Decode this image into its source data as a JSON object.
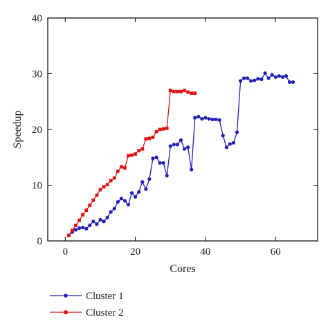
{
  "chart_data": {
    "type": "line",
    "xlabel": "Cores",
    "ylabel": "Speedup",
    "xlim": [
      -5,
      72
    ],
    "ylim": [
      0,
      40
    ],
    "xticks": [
      0,
      20,
      40,
      60
    ],
    "yticks": [
      0,
      10,
      20,
      30,
      40
    ],
    "grid": false,
    "legend_position": "bottom-left, below plot",
    "series": [
      {
        "name": "Cluster 1",
        "color": "#1f1fb4",
        "marker": "circle",
        "x": [
          1,
          2,
          3,
          4,
          5,
          6,
          7,
          8,
          9,
          10,
          11,
          12,
          13,
          14,
          15,
          16,
          17,
          18,
          19,
          20,
          21,
          22,
          23,
          24,
          25,
          26,
          27,
          28,
          29,
          30,
          31,
          32,
          33,
          34,
          35,
          36,
          37,
          38,
          39,
          40,
          41,
          42,
          43,
          44,
          45,
          46,
          47,
          48,
          49,
          50,
          51,
          52,
          53,
          54,
          55,
          56,
          57,
          58,
          59,
          60,
          61,
          62,
          63,
          64,
          65
        ],
        "values": [
          1.0,
          1.6,
          2.0,
          2.3,
          2.4,
          2.2,
          2.8,
          3.5,
          3.0,
          3.8,
          3.5,
          4.2,
          5.2,
          5.8,
          7.0,
          7.6,
          7.2,
          6.5,
          8.6,
          7.9,
          8.8,
          10.6,
          9.3,
          11.1,
          14.8,
          15.0,
          14.0,
          14.0,
          11.7,
          17.0,
          17.3,
          17.3,
          18.1,
          16.5,
          16.8,
          12.8,
          22.1,
          22.3,
          21.9,
          22.1,
          21.9,
          21.8,
          21.8,
          21.7,
          18.9,
          16.8,
          17.4,
          17.6,
          19.5,
          28.7,
          29.2,
          29.2,
          28.7,
          28.8,
          29.1,
          29.0,
          30.1,
          29.2,
          29.8,
          29.4,
          29.6,
          29.4,
          29.6,
          28.5,
          28.5
        ]
      },
      {
        "name": "Cluster 2",
        "color": "#dd1111",
        "marker": "square",
        "x": [
          1,
          2,
          3,
          4,
          5,
          6,
          7,
          8,
          9,
          10,
          11,
          12,
          13,
          14,
          15,
          16,
          17,
          18,
          19,
          20,
          21,
          22,
          23,
          24,
          25,
          26,
          27,
          28,
          29,
          30,
          31,
          32,
          33,
          34,
          35,
          36,
          37
        ],
        "values": [
          1.0,
          1.9,
          2.8,
          3.7,
          4.7,
          5.5,
          6.4,
          7.3,
          8.2,
          9.2,
          9.7,
          10.1,
          10.8,
          11.3,
          12.5,
          13.3,
          13.1,
          15.3,
          15.4,
          15.6,
          16.2,
          16.5,
          18.3,
          18.4,
          18.6,
          19.6,
          20.0,
          20.1,
          20.2,
          27.0,
          26.8,
          26.8,
          26.8,
          27.0,
          26.7,
          26.5,
          26.5
        ]
      }
    ]
  }
}
